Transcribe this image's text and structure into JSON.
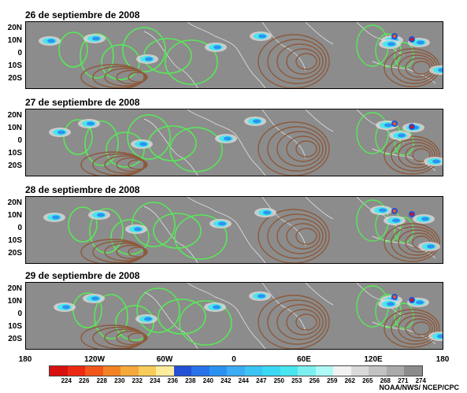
{
  "panels": [
    {
      "title": "26 de septiembre de 2008"
    },
    {
      "title": "27 de septiembre de 2008"
    },
    {
      "title": "28 de septiembre de 2008"
    },
    {
      "title": "29 de septiembre de 2008"
    }
  ],
  "lat_labels": [
    "20N",
    "10N",
    "0",
    "10S",
    "20S"
  ],
  "lon_labels": [
    "180",
    "120W",
    "60W",
    "0",
    "60E",
    "120E",
    "180"
  ],
  "colorbar": {
    "values": [
      "224",
      "226",
      "228",
      "230",
      "232",
      "234",
      "236",
      "238",
      "240",
      "242",
      "244",
      "247",
      "250",
      "253",
      "256",
      "259",
      "262",
      "265",
      "268",
      "271",
      "274"
    ],
    "colors": [
      "#d81010",
      "#ec2a14",
      "#f2561a",
      "#f28224",
      "#f6a83a",
      "#f8cc5a",
      "#fcec9c",
      "#2450d6",
      "#2872ea",
      "#2c92f2",
      "#3cacf4",
      "#3cc4f4",
      "#3ad8f2",
      "#48e6ee",
      "#7cf0f0",
      "#aefaf6",
      "#f2f2f2",
      "#dadada",
      "#c2c2c2",
      "#aaaaaa",
      "#8c8c8c"
    ]
  },
  "credit": "NOAA/NWS/ NCEP/CPC",
  "colors": {
    "background": "#8c8c8c",
    "green_contour": "#58e858",
    "brown_contour": "#8c5a3c",
    "coast": "#ffffff"
  }
}
